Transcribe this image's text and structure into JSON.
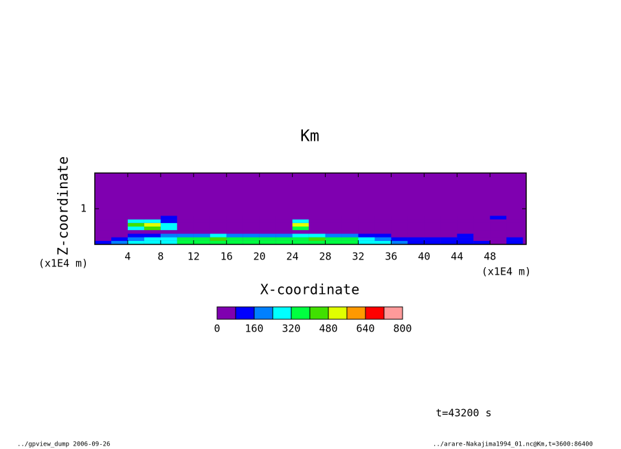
{
  "chart_data": {
    "type": "contour",
    "title": "Km",
    "xlabel": "X-coordinate",
    "ylabel": "Z-coordinate",
    "x_unit": "(x1E4 m)",
    "y_unit": "(x1E4 m)",
    "annotation": "t=43200 s",
    "xlim": [
      0,
      52.4
    ],
    "ylim": [
      0,
      2.0
    ],
    "xticks": [
      4,
      8,
      12,
      16,
      20,
      24,
      28,
      32,
      36,
      40,
      44,
      48
    ],
    "yticks": [
      1
    ],
    "x": [
      1,
      3,
      5,
      7,
      9,
      11,
      13,
      15,
      17,
      19,
      21,
      23,
      25,
      27,
      29,
      31,
      33,
      35,
      37,
      39,
      41,
      43,
      45,
      47,
      49,
      51
    ],
    "y": [
      0.05,
      0.15,
      0.25,
      0.35,
      0.45,
      0.55,
      0.65,
      0.75
    ],
    "values": [
      [
        100,
        200,
        250,
        300,
        300,
        320,
        330,
        340,
        350,
        340,
        330,
        340,
        350,
        360,
        340,
        330,
        300,
        250,
        200,
        150,
        120,
        100,
        130,
        80,
        60,
        100
      ],
      [
        60,
        150,
        200,
        250,
        280,
        330,
        350,
        400,
        380,
        350,
        330,
        350,
        380,
        400,
        350,
        320,
        280,
        200,
        120,
        100,
        100,
        90,
        120,
        60,
        40,
        100
      ],
      [
        30,
        60,
        100,
        150,
        180,
        200,
        220,
        240,
        230,
        220,
        200,
        220,
        240,
        250,
        220,
        200,
        150,
        80,
        40,
        40,
        60,
        60,
        90,
        40,
        30,
        50
      ],
      [
        20,
        40,
        60,
        60,
        40,
        20,
        10,
        10,
        10,
        10,
        10,
        10,
        60,
        10,
        10,
        10,
        10,
        10,
        10,
        10,
        10,
        10,
        10,
        10,
        10,
        10
      ],
      [
        0,
        0,
        300,
        400,
        250,
        0,
        0,
        0,
        0,
        0,
        0,
        0,
        350,
        0,
        0,
        0,
        0,
        0,
        0,
        0,
        0,
        0,
        0,
        0,
        0,
        0
      ],
      [
        0,
        0,
        450,
        500,
        300,
        0,
        0,
        0,
        0,
        0,
        0,
        0,
        500,
        0,
        0,
        0,
        0,
        0,
        0,
        0,
        0,
        0,
        0,
        0,
        0,
        0
      ],
      [
        0,
        0,
        250,
        250,
        150,
        0,
        0,
        0,
        0,
        0,
        0,
        0,
        300,
        0,
        0,
        0,
        0,
        0,
        0,
        0,
        0,
        0,
        0,
        0,
        0,
        0
      ],
      [
        0,
        0,
        0,
        0,
        90,
        0,
        0,
        0,
        0,
        0,
        0,
        0,
        0,
        0,
        0,
        0,
        0,
        0,
        0,
        0,
        0,
        0,
        0,
        0,
        90,
        0
      ]
    ],
    "levels": [
      0,
      80,
      160,
      240,
      320,
      400,
      480,
      560,
      640,
      720,
      800
    ],
    "colors": [
      "#7f00b0",
      "#0000ff",
      "#0080ff",
      "#00ffff",
      "#00ff40",
      "#40e000",
      "#e0ff00",
      "#ff9900",
      "#ff0000",
      "#ff9a9a"
    ],
    "colorbar_ticks": [
      0,
      160,
      320,
      480,
      640,
      800
    ]
  },
  "footer": {
    "left": "../gpview_dump  2006-09-26",
    "right": "../arare-Nakajima1994_01.nc@Km,t=3600:86400"
  }
}
